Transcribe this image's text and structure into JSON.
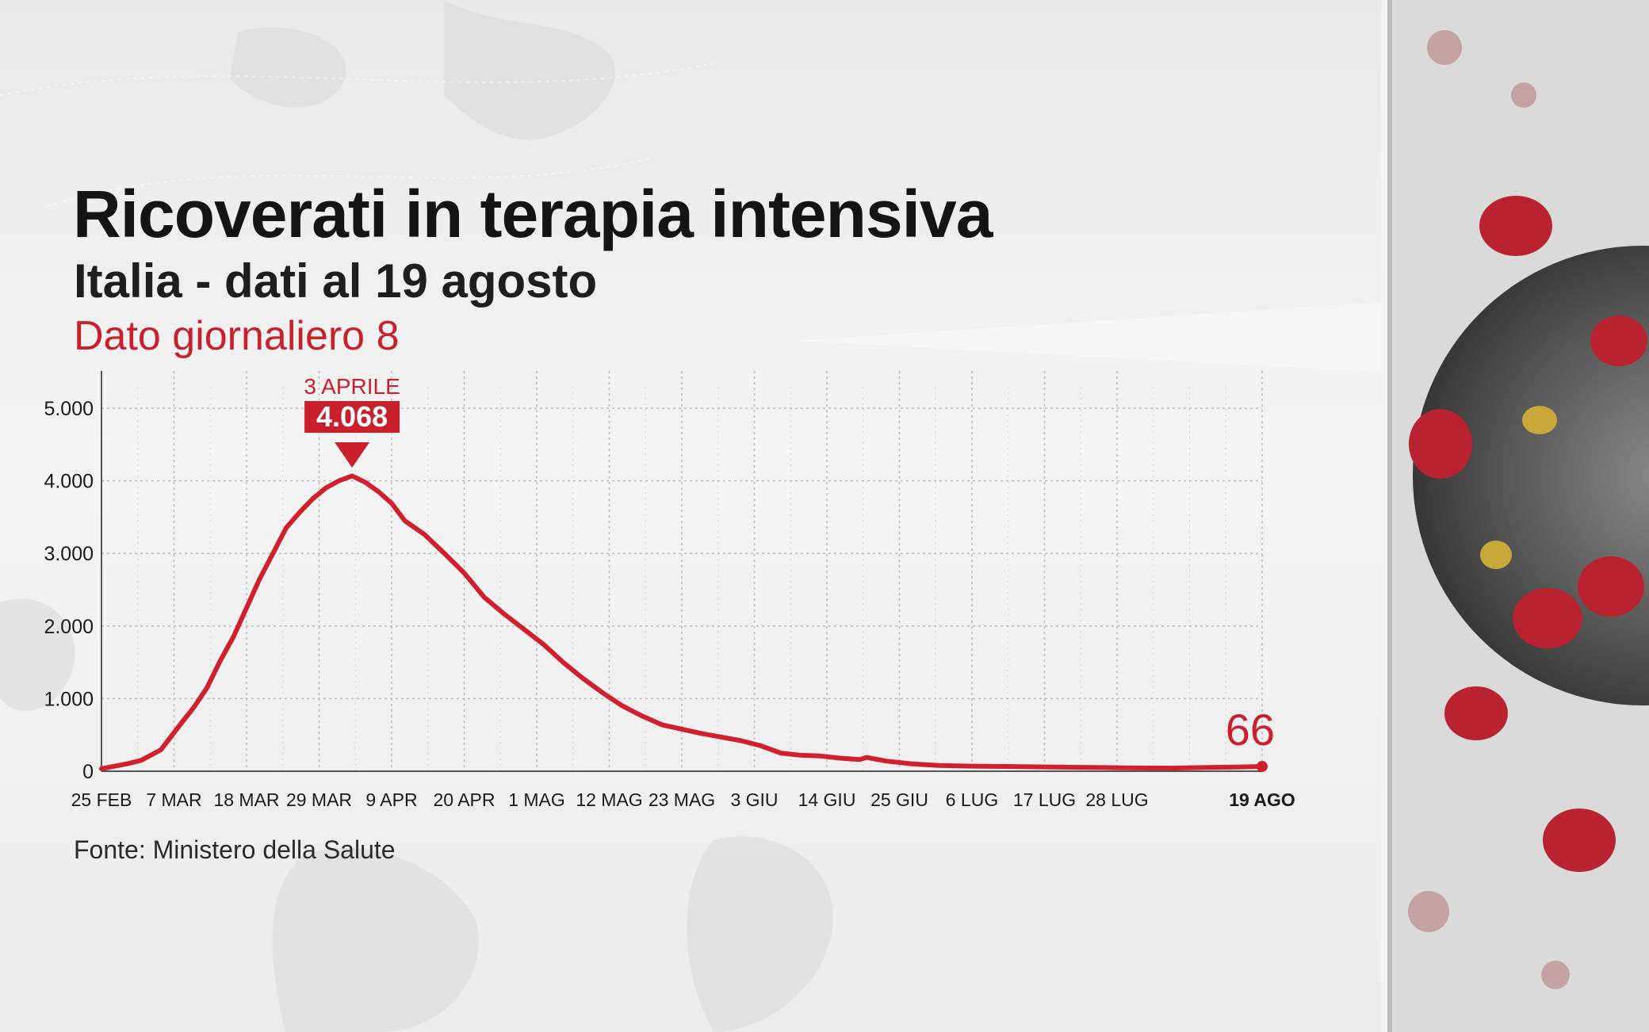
{
  "title": "Ricoverati in terapia intensiva",
  "subtitle": "Italia - dati al 19 agosto",
  "daily_label": "Dato giornaliero",
  "daily_value": "8",
  "source": "Fonte: Ministero della Salute",
  "colors": {
    "line": "#d0202e",
    "text": "#141414",
    "accent": "#c8202c",
    "grid": "#bdbdbd"
  },
  "chart_data": {
    "type": "line",
    "title": "Ricoverati in terapia intensiva",
    "ylim": [
      0,
      5000
    ],
    "yticks": [
      0,
      1000,
      2000,
      3000,
      4000,
      5000
    ],
    "ytick_labels": [
      "0",
      "1.000",
      "2.000",
      "3.000",
      "4.000",
      "5.000"
    ],
    "xlim": [
      "2020-02-25",
      "2020-08-19"
    ],
    "xticks": [
      {
        "date": "2020-02-25",
        "label": "25 FEB"
      },
      {
        "date": "2020-03-07",
        "label": "7 MAR"
      },
      {
        "date": "2020-03-18",
        "label": "18 MAR"
      },
      {
        "date": "2020-03-29",
        "label": "29 MAR"
      },
      {
        "date": "2020-04-09",
        "label": "9 APR"
      },
      {
        "date": "2020-04-20",
        "label": "20 APR"
      },
      {
        "date": "2020-05-01",
        "label": "1 MAG"
      },
      {
        "date": "2020-05-12",
        "label": "12 MAG"
      },
      {
        "date": "2020-05-23",
        "label": "23 MAG"
      },
      {
        "date": "2020-06-03",
        "label": "3 GIU"
      },
      {
        "date": "2020-06-14",
        "label": "14 GIU"
      },
      {
        "date": "2020-06-25",
        "label": "25 GIU"
      },
      {
        "date": "2020-07-06",
        "label": "6 LUG"
      },
      {
        "date": "2020-07-17",
        "label": "17 LUG"
      },
      {
        "date": "2020-07-28",
        "label": "28 LUG"
      },
      {
        "date": "2020-08-19",
        "label": "19 AGO",
        "bold": true
      }
    ],
    "grid": true,
    "series": [
      {
        "values": [
          [
            "2020-02-25",
            35
          ],
          [
            "2020-02-29",
            105
          ],
          [
            "2020-03-02",
            150
          ],
          [
            "2020-03-05",
            295
          ],
          [
            "2020-03-08",
            650
          ],
          [
            "2020-03-10",
            880
          ],
          [
            "2020-03-12",
            1150
          ],
          [
            "2020-03-14",
            1520
          ],
          [
            "2020-03-16",
            1850
          ],
          [
            "2020-03-18",
            2250
          ],
          [
            "2020-03-20",
            2650
          ],
          [
            "2020-03-22",
            3000
          ],
          [
            "2020-03-24",
            3350
          ],
          [
            "2020-03-26",
            3560
          ],
          [
            "2020-03-28",
            3750
          ],
          [
            "2020-03-30",
            3900
          ],
          [
            "2020-04-01",
            4000
          ],
          [
            "2020-04-03",
            4068
          ],
          [
            "2020-04-05",
            3980
          ],
          [
            "2020-04-07",
            3850
          ],
          [
            "2020-04-09",
            3690
          ],
          [
            "2020-04-11",
            3450
          ],
          [
            "2020-04-14",
            3260
          ],
          [
            "2020-04-17",
            3000
          ],
          [
            "2020-04-20",
            2730
          ],
          [
            "2020-04-23",
            2400
          ],
          [
            "2020-04-26",
            2170
          ],
          [
            "2020-04-29",
            1960
          ],
          [
            "2020-05-02",
            1750
          ],
          [
            "2020-05-05",
            1500
          ],
          [
            "2020-05-08",
            1280
          ],
          [
            "2020-05-11",
            1080
          ],
          [
            "2020-05-14",
            900
          ],
          [
            "2020-05-17",
            760
          ],
          [
            "2020-05-20",
            640
          ],
          [
            "2020-05-23",
            580
          ],
          [
            "2020-05-26",
            520
          ],
          [
            "2020-05-29",
            470
          ],
          [
            "2020-06-01",
            420
          ],
          [
            "2020-06-04",
            350
          ],
          [
            "2020-06-07",
            250
          ],
          [
            "2020-06-10",
            220
          ],
          [
            "2020-06-13",
            210
          ],
          [
            "2020-06-16",
            180
          ],
          [
            "2020-06-19",
            160
          ],
          [
            "2020-06-20",
            190
          ],
          [
            "2020-06-23",
            140
          ],
          [
            "2020-06-27",
            100
          ],
          [
            "2020-07-01",
            80
          ],
          [
            "2020-07-06",
            70
          ],
          [
            "2020-07-11",
            65
          ],
          [
            "2020-07-16",
            60
          ],
          [
            "2020-07-21",
            55
          ],
          [
            "2020-07-26",
            50
          ],
          [
            "2020-07-31",
            45
          ],
          [
            "2020-08-05",
            43
          ],
          [
            "2020-08-10",
            50
          ],
          [
            "2020-08-15",
            58
          ],
          [
            "2020-08-19",
            66
          ]
        ]
      }
    ],
    "annotations": [
      {
        "date": "2020-04-03",
        "label": "3 APRILE",
        "value_label": "4.068",
        "value": 4068
      },
      {
        "date": "2020-08-19",
        "value_label": "66",
        "value": 66
      }
    ]
  }
}
